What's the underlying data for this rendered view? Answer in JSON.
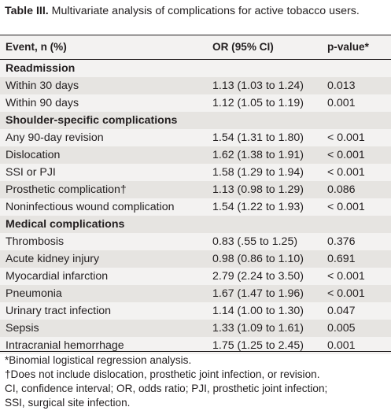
{
  "caption": {
    "label": "Table III.",
    "text": " Multivariate analysis of complications for active tobacco users."
  },
  "columns": [
    "Event, n (%)",
    "OR (95% CI)",
    "p-value*"
  ],
  "rows": [
    {
      "type": "section",
      "event": "Readmission"
    },
    {
      "type": "data",
      "event": "Within 30 days",
      "or": "1.13 (1.03 to 1.24)",
      "p": "0.013"
    },
    {
      "type": "data",
      "event": "Within 90 days",
      "or": "1.12 (1.05 to 1.19)",
      "p": "0.001"
    },
    {
      "type": "section",
      "event": "Shoulder-specific complications"
    },
    {
      "type": "data",
      "event": "Any 90-day revision",
      "or": "1.54 (1.31 to 1.80)",
      "p": "< 0.001"
    },
    {
      "type": "data",
      "event": "Dislocation",
      "or": "1.62 (1.38 to 1.91)",
      "p": "< 0.001"
    },
    {
      "type": "data",
      "event": "SSI or PJI",
      "or": "1.58 (1.29 to 1.94)",
      "p": "< 0.001"
    },
    {
      "type": "data",
      "event": "Prosthetic complication†",
      "or": "1.13 (0.98 to 1.29)",
      "p": "0.086"
    },
    {
      "type": "data",
      "event": "Noninfectious wound complication",
      "or": "1.54 (1.22 to 1.93)",
      "p": "< 0.001"
    },
    {
      "type": "section",
      "event": "Medical complications"
    },
    {
      "type": "data",
      "event": "Thrombosis",
      "or": "0.83 (.55 to 1.25)",
      "p": "0.376"
    },
    {
      "type": "data",
      "event": "Acute kidney injury",
      "or": "0.98 (0.86 to 1.10)",
      "p": "0.691"
    },
    {
      "type": "data",
      "event": "Myocardial infarction",
      "or": "2.79 (2.24 to 3.50)",
      "p": "< 0.001"
    },
    {
      "type": "data",
      "event": "Pneumonia",
      "or": "1.67 (1.47 to 1.96)",
      "p": "< 0.001"
    },
    {
      "type": "data",
      "event": "Urinary tract infection",
      "or": "1.14 (1.00 to 1.30)",
      "p": "0.047"
    },
    {
      "type": "data",
      "event": "Sepsis",
      "or": "1.33 (1.09 to 1.61)",
      "p": "0.005"
    },
    {
      "type": "data",
      "event": "Intracranial hemorrhage",
      "or": "1.75 (1.25 to 2.45)",
      "p": "0.001"
    }
  ],
  "footnotes": [
    "*Binomial logistical regression analysis.",
    "†Does not include dislocation, prosthetic joint infection, or revision.",
    "CI, confidence interval; OR, odds ratio; PJI, prosthetic joint infection;",
    "SSI, surgical site infection."
  ],
  "colors": {
    "header_bg": "#f3f2f1",
    "row_light": "#f3f2f1",
    "row_dark": "#e6e4e1",
    "text": "#231f20"
  }
}
